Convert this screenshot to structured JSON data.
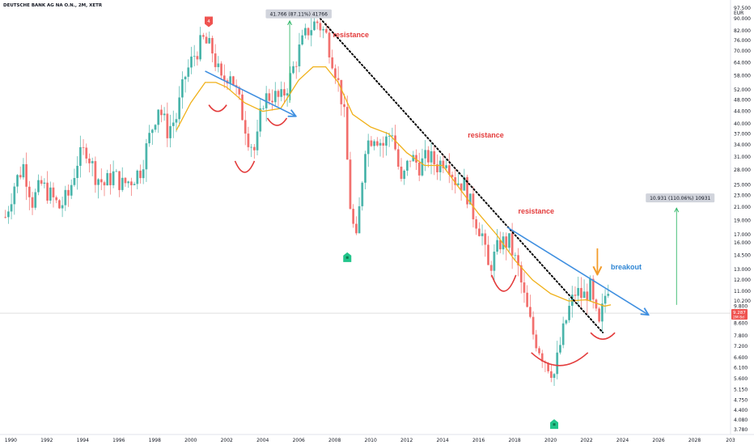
{
  "chart_data": {
    "type": "candlestick",
    "title": "DEUTSCHE BANK AG NA O.N., 2M, XETR",
    "currency": "EUR",
    "y_scale": "log",
    "ylim": [
      3.6,
      100
    ],
    "xlim": [
      1989.4,
      2030.0
    ],
    "x_ticks": [
      "1990",
      "1992",
      "1994",
      "1996",
      "1998",
      "2000",
      "2002",
      "2004",
      "2006",
      "2008",
      "2010",
      "2012",
      "2014",
      "2016",
      "2018",
      "2020",
      "2022",
      "2024",
      "2026",
      "2028",
      "203"
    ],
    "y_ticks": [
      "97.500",
      "90.000",
      "82.000",
      "76.000",
      "70.000",
      "64.000",
      "58.000",
      "52.000",
      "48.000",
      "44.000",
      "40.000",
      "37.000",
      "34.000",
      "31.000",
      "28.000",
      "25.000",
      "23.000",
      "21.000",
      "19.000",
      "17.000",
      "16.000",
      "14.500",
      "13.000",
      "12.000",
      "11.000",
      "10.200",
      "9.800",
      "8.600",
      "7.800",
      "7.200",
      "6.600",
      "6.100",
      "5.600",
      "5.150",
      "4.750",
      "4.400",
      "4.080",
      "3.780"
    ],
    "last_price": {
      "value": 9.287,
      "label": "9.287",
      "sublabel": "2M 8d"
    },
    "price_path": [
      [
        1989.7,
        19.5
      ],
      [
        1990.2,
        25
      ],
      [
        1990.7,
        29
      ],
      [
        1991.2,
        22
      ],
      [
        1991.7,
        25
      ],
      [
        1992.2,
        23
      ],
      [
        1992.7,
        21
      ],
      [
        1993.2,
        23
      ],
      [
        1993.7,
        30
      ],
      [
        1994.2,
        33
      ],
      [
        1994.7,
        27
      ],
      [
        1995.2,
        25
      ],
      [
        1995.7,
        27
      ],
      [
        1996.2,
        25
      ],
      [
        1996.7,
        26
      ],
      [
        1997.2,
        28
      ],
      [
        1997.7,
        36
      ],
      [
        1998.2,
        46
      ],
      [
        1998.7,
        38
      ],
      [
        1999.2,
        42
      ],
      [
        1999.7,
        58
      ],
      [
        2000.2,
        68
      ],
      [
        2000.7,
        76
      ],
      [
        2001.2,
        70
      ],
      [
        2001.7,
        55
      ],
      [
        2002.2,
        60
      ],
      [
        2002.7,
        47
      ],
      [
        2003.2,
        36
      ],
      [
        2003.6,
        32
      ],
      [
        2004.0,
        48
      ],
      [
        2004.5,
        50
      ],
      [
        2005.0,
        48
      ],
      [
        2005.5,
        56
      ],
      [
        2006.0,
        70
      ],
      [
        2006.5,
        82
      ],
      [
        2007.0,
        88
      ],
      [
        2007.5,
        80
      ],
      [
        2008.0,
        62
      ],
      [
        2008.5,
        45
      ],
      [
        2008.9,
        20
      ],
      [
        2009.2,
        16
      ],
      [
        2009.7,
        34
      ],
      [
        2010.2,
        37
      ],
      [
        2010.7,
        34
      ],
      [
        2011.2,
        38
      ],
      [
        2011.7,
        25
      ],
      [
        2012.2,
        31
      ],
      [
        2012.7,
        29
      ],
      [
        2013.2,
        31
      ],
      [
        2013.7,
        29
      ],
      [
        2014.2,
        31
      ],
      [
        2014.7,
        26
      ],
      [
        2015.2,
        25
      ],
      [
        2015.7,
        20
      ],
      [
        2016.2,
        17
      ],
      [
        2016.5,
        13
      ],
      [
        2016.8,
        14
      ],
      [
        2017.2,
        16
      ],
      [
        2017.7,
        16
      ],
      [
        2018.2,
        13
      ],
      [
        2018.6,
        10
      ],
      [
        2019.0,
        8
      ],
      [
        2019.5,
        6.8
      ],
      [
        2019.9,
        6.2
      ],
      [
        2020.2,
        5.8
      ],
      [
        2020.6,
        7.6
      ],
      [
        2021.0,
        9.5
      ],
      [
        2021.4,
        11
      ],
      [
        2021.8,
        10.5
      ],
      [
        2022.2,
        11.2
      ],
      [
        2022.4,
        9.6
      ],
      [
        2022.7,
        8.3
      ],
      [
        2023.0,
        10.5
      ],
      [
        2023.2,
        11.5
      ],
      [
        2023.35,
        9.287
      ]
    ],
    "moving_average": [
      [
        1999.2,
        38
      ],
      [
        2000.0,
        47
      ],
      [
        2000.8,
        55
      ],
      [
        2001.4,
        55
      ],
      [
        2002.0,
        53
      ],
      [
        2003.0,
        47
      ],
      [
        2004.0,
        44
      ],
      [
        2005.0,
        45
      ],
      [
        2006.0,
        56
      ],
      [
        2006.8,
        62
      ],
      [
        2007.5,
        62
      ],
      [
        2008.2,
        55
      ],
      [
        2009.0,
        43
      ],
      [
        2010.0,
        39
      ],
      [
        2011.0,
        37
      ],
      [
        2012.0,
        32
      ],
      [
        2013.0,
        29
      ],
      [
        2014.0,
        29
      ],
      [
        2015.0,
        24
      ],
      [
        2016.0,
        20
      ],
      [
        2017.0,
        17
      ],
      [
        2018.0,
        14
      ],
      [
        2019.0,
        12
      ],
      [
        2020.0,
        10.8
      ],
      [
        2021.0,
        10.2
      ],
      [
        2022.0,
        10.3
      ],
      [
        2023.0,
        9.8
      ],
      [
        2023.35,
        9.9
      ]
    ],
    "annotations": {
      "resistance_labels": [
        {
          "text": "resistance",
          "x": 2008.9,
          "y": 78
        },
        {
          "text": "resistance",
          "x": 2016.4,
          "y": 36
        },
        {
          "text": "resistance",
          "x": 2019.2,
          "y": 20
        }
      ],
      "breakout_label": {
        "text": "breakout",
        "x": 2024.2,
        "y": 13
      },
      "measure_boxes": [
        {
          "text": "41.766 (87.11%) 41766",
          "x": 2006.0,
          "y": 93
        },
        {
          "text": "10.931 (110.06%) 10931",
          "x": 2027.2,
          "y": 22.5
        }
      ],
      "measure_arrows": [
        {
          "x": 2005.5,
          "y_from": 47,
          "y_to": 88
        },
        {
          "x": 2027.0,
          "y_from": 9.9,
          "y_to": 20.8
        }
      ],
      "dotted_trendline": [
        [
          2007.2,
          90
        ],
        [
          2022.9,
          8
        ]
      ],
      "blue_trendlines": [
        [
          [
            2000.8,
            60
          ],
          [
            2005.8,
            42.5
          ]
        ],
        [
          [
            2017.6,
            18
          ],
          [
            2025.4,
            9.2
          ]
        ]
      ],
      "red_arcs": [
        {
          "x": 2001.5,
          "y": 44
        },
        {
          "x": 2003.0,
          "y": 27.5
        },
        {
          "x": 2004.8,
          "y": 39.5
        },
        {
          "x": 2017.4,
          "y": 11
        },
        {
          "x": 2020.5,
          "y": 6.2
        },
        {
          "x": 2022.9,
          "y": 7.6
        }
      ],
      "down_arrow": {
        "x": 2022.6,
        "y_from": 15.3,
        "y_to": 12.6
      },
      "markers": [
        {
          "kind": "sell-flag",
          "label": "4",
          "x": 2001.0,
          "y": 88
        },
        {
          "kind": "buy-flag",
          "label": "",
          "x": 2008.7,
          "y": 14.3
        },
        {
          "kind": "buy-flag",
          "label": "",
          "x": 2020.2,
          "y": 3.95
        }
      ]
    },
    "colors": {
      "up": "#26a69a",
      "down": "#ef5350",
      "moving_average": "#f0b11a",
      "trendline_blue": "#3f8fe0",
      "annotation_red": "#e33b3b",
      "measure_green": "#33b86a",
      "price_tag": "#ef5350"
    }
  }
}
